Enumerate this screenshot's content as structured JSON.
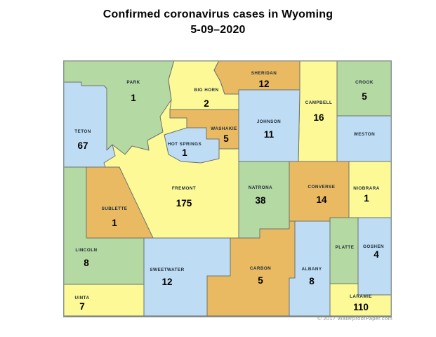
{
  "title": {
    "line1": "Confirmed coronavirus cases in Wyoming",
    "line2": "5-09–2020"
  },
  "copyright": "© 2017 WaterproofPaper.com",
  "palette": {
    "green": "#b5d9a2",
    "blue": "#bedcf4",
    "yellow": "#fcf996",
    "orange": "#e9ba62",
    "county_border": "#6d7370",
    "map_border": "#8b9693",
    "label_text": "#1c2b38",
    "cases_text": "#000000"
  },
  "map": {
    "state": "Wyoming",
    "counties": [
      {
        "id": "park",
        "name": "PARK",
        "cases": "1",
        "color": "green"
      },
      {
        "id": "bighorn",
        "name": "BIG HORN",
        "cases": "2",
        "color": "yellow"
      },
      {
        "id": "sheridan",
        "name": "SHERIDAN",
        "cases": "12",
        "color": "orange"
      },
      {
        "id": "campbell",
        "name": "CAMPBELL",
        "cases": "16",
        "color": "yellow"
      },
      {
        "id": "crook",
        "name": "CROOK",
        "cases": "5",
        "color": "green"
      },
      {
        "id": "weston",
        "name": "WESTON",
        "cases": "",
        "color": "blue"
      },
      {
        "id": "johnson",
        "name": "JOHNSON",
        "cases": "11",
        "color": "blue"
      },
      {
        "id": "washakie",
        "name": "WASHAKIE",
        "cases": "5",
        "color": "orange"
      },
      {
        "id": "hotsprings",
        "name": "HOT SPRINGS",
        "cases": "1",
        "color": "blue"
      },
      {
        "id": "teton",
        "name": "TETON",
        "cases": "67",
        "color": "blue"
      },
      {
        "id": "fremont",
        "name": "FREMONT",
        "cases": "175",
        "color": "yellow"
      },
      {
        "id": "sublette",
        "name": "SUBLETTE",
        "cases": "1",
        "color": "orange"
      },
      {
        "id": "natrona",
        "name": "NATRONA",
        "cases": "38",
        "color": "green"
      },
      {
        "id": "converse",
        "name": "CONVERSE",
        "cases": "14",
        "color": "orange"
      },
      {
        "id": "niobrara",
        "name": "NIOBRARA",
        "cases": "1",
        "color": "yellow"
      },
      {
        "id": "lincoln",
        "name": "LINCOLN",
        "cases": "8",
        "color": "green"
      },
      {
        "id": "uinta",
        "name": "UINTA",
        "cases": "7",
        "color": "yellow"
      },
      {
        "id": "sweetwater",
        "name": "SWEETWATER",
        "cases": "12",
        "color": "blue"
      },
      {
        "id": "carbon",
        "name": "CARBON",
        "cases": "5",
        "color": "orange"
      },
      {
        "id": "albany",
        "name": "ALBANY",
        "cases": "8",
        "color": "blue"
      },
      {
        "id": "platte",
        "name": "PLATTE",
        "cases": "",
        "color": "green"
      },
      {
        "id": "goshen",
        "name": "GOSHEN",
        "cases": "4",
        "color": "blue"
      },
      {
        "id": "laramie",
        "name": "LARAMIE",
        "cases": "110",
        "color": "yellow"
      }
    ]
  }
}
